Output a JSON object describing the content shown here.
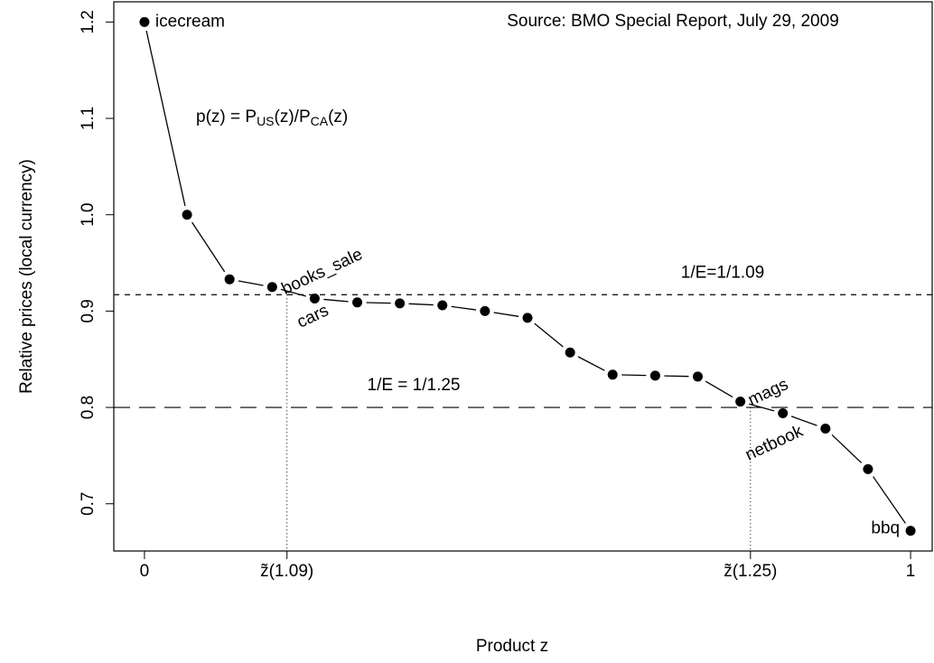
{
  "chart_data": {
    "type": "line",
    "source": "Source: BMO Special Report, July 29, 2009",
    "formula_parts": [
      "p(z) = P",
      "US",
      "(z)/P",
      "CA",
      "(z)"
    ],
    "xlabel": "Product z",
    "ylabel": "Relative prices (local currency)",
    "x": [
      0,
      0.0556,
      0.1111,
      0.1667,
      0.2222,
      0.2778,
      0.3333,
      0.3889,
      0.4444,
      0.5,
      0.5556,
      0.6111,
      0.6667,
      0.7222,
      0.7778,
      0.8333,
      0.8889,
      0.9444,
      1
    ],
    "values": [
      1.2,
      1.0,
      0.933,
      0.925,
      0.913,
      0.909,
      0.908,
      0.906,
      0.9,
      0.893,
      0.857,
      0.834,
      0.833,
      0.832,
      0.806,
      0.794,
      0.778,
      0.736,
      0.672
    ],
    "point_labels": [
      "icecream",
      null,
      null,
      "books_sale",
      "cars",
      null,
      null,
      null,
      null,
      null,
      null,
      null,
      null,
      null,
      "mags",
      "netbook",
      null,
      null,
      "bbq"
    ],
    "hlines": [
      {
        "value": 0.917,
        "label": "1/E=1/1.09"
      },
      {
        "value": 0.8,
        "label": "1/E = 1/1.25"
      }
    ],
    "xlim": [
      -0.04,
      1.04
    ],
    "ylim": [
      0.651,
      1.221
    ],
    "xticks": [
      0,
      {
        "value": 0.186,
        "label": "z̃(1.09)"
      },
      {
        "value": 0.791,
        "label": "z̃(1.25)"
      },
      1
    ],
    "yticks": [
      {
        "value": 0.7,
        "label": "0.7"
      },
      {
        "value": 0.8,
        "label": "0.8"
      },
      {
        "value": 0.9,
        "label": "0.9"
      },
      {
        "value": 1.0,
        "label": "1.0"
      },
      {
        "value": 1.1,
        "label": "1.1"
      },
      {
        "value": 1.2,
        "label": "1.2"
      }
    ],
    "color": "#000000"
  }
}
